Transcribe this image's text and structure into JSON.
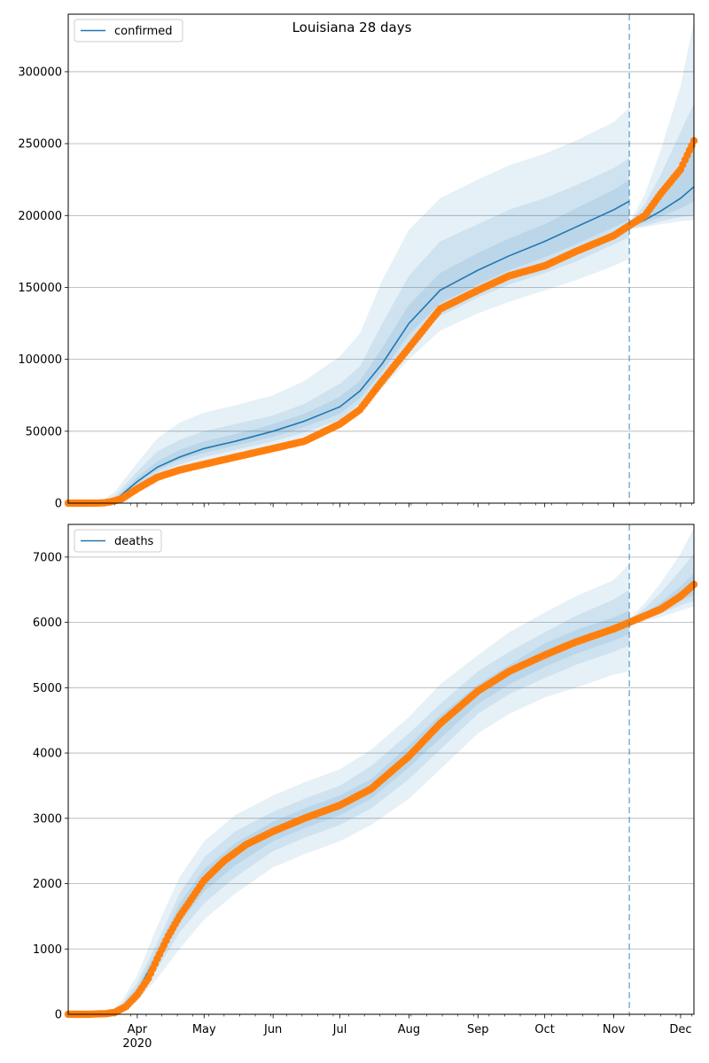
{
  "colors": {
    "model": "#1f77b4",
    "observed": "#ff7f0e",
    "band": "#1f77b4",
    "grid": "#b0b0b0",
    "split": "#1f77b4"
  },
  "chart_data": [
    {
      "type": "line",
      "title": "Louisiana 28 days",
      "legend": {
        "label": "confirmed",
        "placement": "top-left"
      },
      "grid": "y",
      "ylim": [
        0,
        340000
      ],
      "yticks": [
        0,
        50000,
        100000,
        150000,
        200000,
        250000,
        300000
      ],
      "ytick_labels": [
        "0",
        "50000",
        "100000",
        "150000",
        "200000",
        "250000",
        "300000"
      ],
      "xlim": [
        "2020-03-01",
        "2020-12-07"
      ],
      "split_date": "2020-11-08",
      "model": {
        "dates": [
          "2020-03-01",
          "2020-03-15",
          "2020-03-22",
          "2020-04-01",
          "2020-04-10",
          "2020-04-20",
          "2020-05-01",
          "2020-05-15",
          "2020-06-01",
          "2020-06-15",
          "2020-07-01",
          "2020-07-10",
          "2020-07-20",
          "2020-08-01",
          "2020-08-15",
          "2020-09-01",
          "2020-09-15",
          "2020-10-01",
          "2020-10-15",
          "2020-11-01",
          "2020-11-08"
        ],
        "median": [
          0,
          0,
          2000,
          15000,
          25000,
          32000,
          38000,
          43000,
          50000,
          57000,
          67000,
          78000,
          97000,
          125000,
          148000,
          162000,
          172000,
          182000,
          192000,
          204000,
          210000
        ],
        "bands": [
          {
            "lo": [
              0,
              0,
              0,
              10000,
              18000,
              23000,
              28000,
              32000,
              37000,
              42000,
              52000,
              62000,
              80000,
              100000,
              120000,
              132000,
              140000,
              148000,
              155000,
              165000,
              170000
            ],
            "hi": [
              0,
              500,
              8000,
              28000,
              45000,
              56000,
              63000,
              68000,
              75000,
              85000,
              102000,
              118000,
              155000,
              190000,
              212000,
              225000,
              235000,
              243000,
              252000,
              265000,
              275000
            ]
          },
          {
            "lo": [
              0,
              0,
              500,
              12000,
              21000,
              27000,
              32000,
              37000,
              43000,
              49000,
              58000,
              69000,
              87000,
              110000,
              130000,
              143000,
              152000,
              160000,
              168000,
              180000,
              185000
            ],
            "hi": [
              0,
              200,
              5000,
              22000,
              36000,
              44000,
              50000,
              55000,
              61000,
              69000,
              83000,
              95000,
              125000,
              158000,
              182000,
              194000,
              204000,
              212000,
              221000,
              233000,
              240000
            ]
          },
          {
            "lo": [
              0,
              0,
              1000,
              13500,
              23000,
              30000,
              35000,
              40000,
              46000,
              53000,
              62000,
              73000,
              92000,
              117000,
              139000,
              152000,
              162000,
              171000,
              180000,
              192000,
              197000
            ],
            "hi": [
              0,
              100,
              3000,
              18000,
              29000,
              37000,
              43000,
              48000,
              55000,
              62000,
              74000,
              85000,
              108000,
              138000,
              160000,
              174000,
              184000,
              194000,
              205000,
              218000,
              225000
            ]
          }
        ]
      },
      "forecast": {
        "dates": [
          "2020-11-08",
          "2020-11-15",
          "2020-11-22",
          "2020-12-01",
          "2020-12-07"
        ],
        "median": [
          192000,
          197000,
          203000,
          212000,
          220000
        ],
        "bands": [
          {
            "lo": [
              190000,
              192000,
              194000,
              196000,
              197000
            ],
            "hi": [
              195000,
              215000,
              245000,
              290000,
              335000
            ]
          },
          {
            "lo": [
              191000,
              193000,
              196000,
              199000,
              200000
            ],
            "hi": [
              194000,
              208000,
              228000,
              258000,
              278000
            ]
          },
          {
            "lo": [
              191500,
              195000,
              199000,
              205000,
              210000
            ],
            "hi": [
              193500,
              202000,
              214000,
              232000,
              245000
            ]
          }
        ]
      },
      "observed": {
        "dates": [
          "2020-03-01",
          "2020-03-08",
          "2020-03-12",
          "2020-03-17",
          "2020-03-20",
          "2020-03-25",
          "2020-04-01",
          "2020-04-10",
          "2020-04-20",
          "2020-05-01",
          "2020-05-15",
          "2020-06-01",
          "2020-06-15",
          "2020-07-01",
          "2020-07-10",
          "2020-07-20",
          "2020-08-01",
          "2020-08-15",
          "2020-09-01",
          "2020-09-15",
          "2020-10-01",
          "2020-10-15",
          "2020-11-01",
          "2020-11-08",
          "2020-11-15",
          "2020-11-22",
          "2020-12-01",
          "2020-12-07"
        ],
        "values": [
          0,
          0,
          0,
          200,
          900,
          3000,
          10000,
          18000,
          23000,
          27000,
          32000,
          38000,
          43000,
          55000,
          65000,
          85000,
          108000,
          135000,
          148000,
          158000,
          165000,
          175000,
          186000,
          193000,
          200000,
          215000,
          232000,
          252000
        ]
      }
    },
    {
      "type": "line",
      "title": "",
      "legend": {
        "label": "deaths",
        "placement": "top-left"
      },
      "grid": "y",
      "ylim": [
        0,
        7500
      ],
      "yticks": [
        0,
        1000,
        2000,
        3000,
        4000,
        5000,
        6000,
        7000
      ],
      "ytick_labels": [
        "0",
        "1000",
        "2000",
        "3000",
        "4000",
        "5000",
        "6000",
        "7000"
      ],
      "xlim": [
        "2020-03-01",
        "2020-12-07"
      ],
      "xticks": [
        "2020-04-01",
        "2020-05-01",
        "2020-06-01",
        "2020-07-01",
        "2020-08-01",
        "2020-09-01",
        "2020-10-01",
        "2020-11-01",
        "2020-12-01"
      ],
      "xtick_labels": [
        "Apr",
        "May",
        "Jun",
        "Jul",
        "Aug",
        "Sep",
        "Oct",
        "Nov",
        "Dec"
      ],
      "xtick_sublabel": "2020",
      "split_date": "2020-11-08",
      "model": {
        "dates": [
          "2020-03-01",
          "2020-03-20",
          "2020-03-25",
          "2020-04-01",
          "2020-04-10",
          "2020-04-20",
          "2020-05-01",
          "2020-05-15",
          "2020-06-01",
          "2020-06-15",
          "2020-07-01",
          "2020-07-15",
          "2020-08-01",
          "2020-08-15",
          "2020-09-01",
          "2020-09-15",
          "2020-10-01",
          "2020-10-15",
          "2020-11-01",
          "2020-11-08"
        ],
        "median": [
          0,
          20,
          100,
          350,
          900,
          1550,
          2050,
          2450,
          2800,
          3000,
          3200,
          3450,
          3950,
          4400,
          4900,
          5200,
          5500,
          5700,
          5900,
          6000
        ],
        "bands": [
          {
            "lo": [
              0,
              0,
              40,
              200,
              550,
              1000,
              1450,
              1850,
              2250,
              2450,
              2650,
              2900,
              3300,
              3750,
              4300,
              4600,
              4850,
              5000,
              5200,
              5250
            ],
            "hi": [
              0,
              50,
              200,
              600,
              1350,
              2100,
              2650,
              3050,
              3350,
              3550,
              3750,
              4050,
              4550,
              5050,
              5500,
              5850,
              6150,
              6400,
              6650,
              6900
            ]
          },
          {
            "lo": [
              0,
              5,
              70,
              260,
              700,
              1250,
              1700,
              2100,
              2500,
              2700,
              2900,
              3150,
              3600,
              4050,
              4600,
              4900,
              5150,
              5350,
              5550,
              5650
            ],
            "hi": [
              0,
              35,
              150,
              480,
              1100,
              1850,
              2400,
              2800,
              3100,
              3300,
              3500,
              3800,
              4300,
              4750,
              5250,
              5550,
              5850,
              6100,
              6350,
              6500
            ]
          },
          {
            "lo": [
              0,
              10,
              85,
              300,
              800,
              1400,
              1880,
              2280,
              2650,
              2850,
              3050,
              3300,
              3780,
              4220,
              4750,
              5050,
              5320,
              5520,
              5720,
              5820
            ],
            "hi": [
              0,
              30,
              125,
              410,
              1000,
              1700,
              2220,
              2620,
              2950,
              3150,
              3350,
              3600,
              4120,
              4580,
              5050,
              5350,
              5680,
              5880,
              6080,
              6180
            ]
          }
        ]
      },
      "forecast": {
        "dates": [
          "2020-11-08",
          "2020-11-15",
          "2020-11-22",
          "2020-12-01",
          "2020-12-07"
        ],
        "median": [
          6000,
          6100,
          6200,
          6400,
          6550
        ],
        "bands": [
          {
            "lo": [
              5950,
              6020,
              6080,
              6180,
              6250
            ],
            "hi": [
              6050,
              6300,
              6600,
              7050,
              7450
            ]
          },
          {
            "lo": [
              5970,
              6050,
              6130,
              6260,
              6330
            ],
            "hi": [
              6030,
              6220,
              6450,
              6800,
              7050
            ]
          },
          {
            "lo": [
              5985,
              6080,
              6170,
              6330,
              6420
            ],
            "hi": [
              6015,
              6150,
              6300,
              6550,
              6750
            ]
          }
        ]
      },
      "observed": {
        "dates": [
          "2020-03-01",
          "2020-03-10",
          "2020-03-18",
          "2020-03-22",
          "2020-03-27",
          "2020-04-01",
          "2020-04-06",
          "2020-04-10",
          "2020-04-15",
          "2020-04-20",
          "2020-05-01",
          "2020-05-10",
          "2020-05-20",
          "2020-06-01",
          "2020-06-15",
          "2020-07-01",
          "2020-07-15",
          "2020-08-01",
          "2020-08-15",
          "2020-09-01",
          "2020-09-15",
          "2020-10-01",
          "2020-10-15",
          "2020-11-01",
          "2020-11-08",
          "2020-11-15",
          "2020-11-22",
          "2020-12-01",
          "2020-12-07"
        ],
        "values": [
          0,
          0,
          10,
          30,
          120,
          300,
          550,
          850,
          1200,
          1500,
          2050,
          2350,
          2600,
          2800,
          3000,
          3200,
          3450,
          3950,
          4450,
          4950,
          5250,
          5500,
          5700,
          5900,
          6000,
          6100,
          6200,
          6400,
          6580
        ]
      }
    }
  ]
}
